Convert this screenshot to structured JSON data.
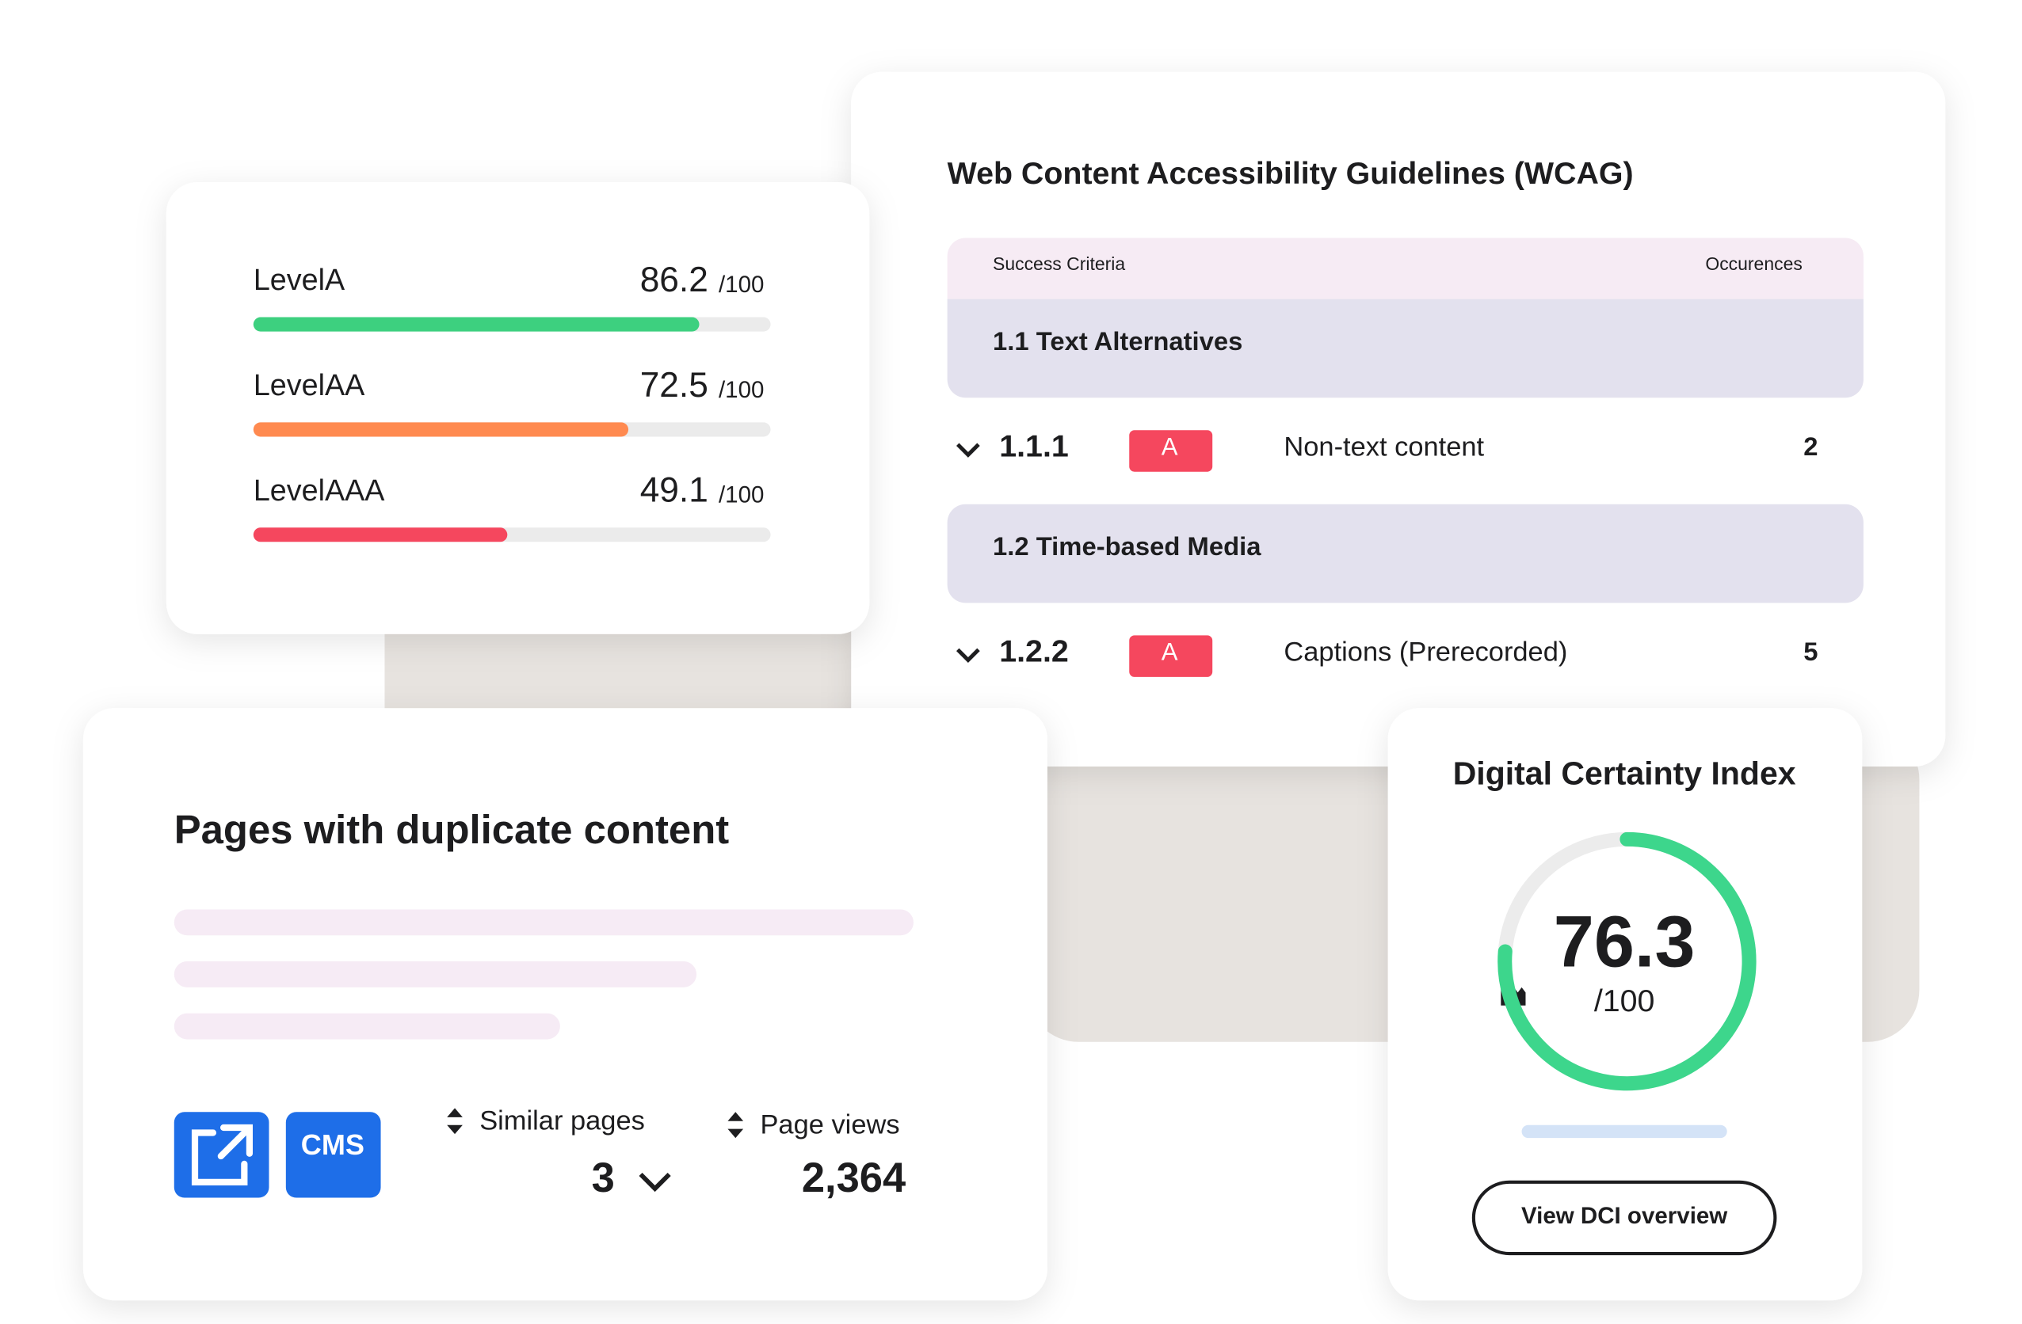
{
  "level_scores": {
    "out_of": {
      "value": 100,
      "label": "/100"
    },
    "levels": [
      {
        "name": "LevelA",
        "score": 86.2,
        "color": "#3dd07f"
      },
      {
        "name": "LevelAA",
        "score": 72.5,
        "color": "#ff8a50"
      },
      {
        "name": "LevelAAA",
        "score": 49.1,
        "color": "#f5475e"
      }
    ]
  },
  "wcag": {
    "title": "Web Content Accessibility Guidelines (WCAG)",
    "header": {
      "criteria": "Success Criteria",
      "occurrences": "Occurences"
    },
    "sections": [
      {
        "title": "1.1 Text Alternatives",
        "rows": [
          {
            "id": "1.1.1",
            "level": "A",
            "name": "Non-text content",
            "count": 2
          }
        ]
      },
      {
        "title": "1.2 Time-based Media",
        "rows": [
          {
            "id": "1.2.2",
            "level": "A",
            "name": "Captions (Prerecorded)",
            "count": 5
          }
        ]
      }
    ]
  },
  "duplicate_content": {
    "title": "Pages with duplicate content",
    "cms_label": "CMS",
    "similar_pages": {
      "label": "Similar pages",
      "value": "3"
    },
    "page_views": {
      "label": "Page views",
      "value": "2,364"
    }
  },
  "dci": {
    "title": "Digital Certainty Index",
    "score": 76.3,
    "out_of": {
      "value": 100,
      "label": "/100"
    },
    "button": "View DCI overview"
  }
}
